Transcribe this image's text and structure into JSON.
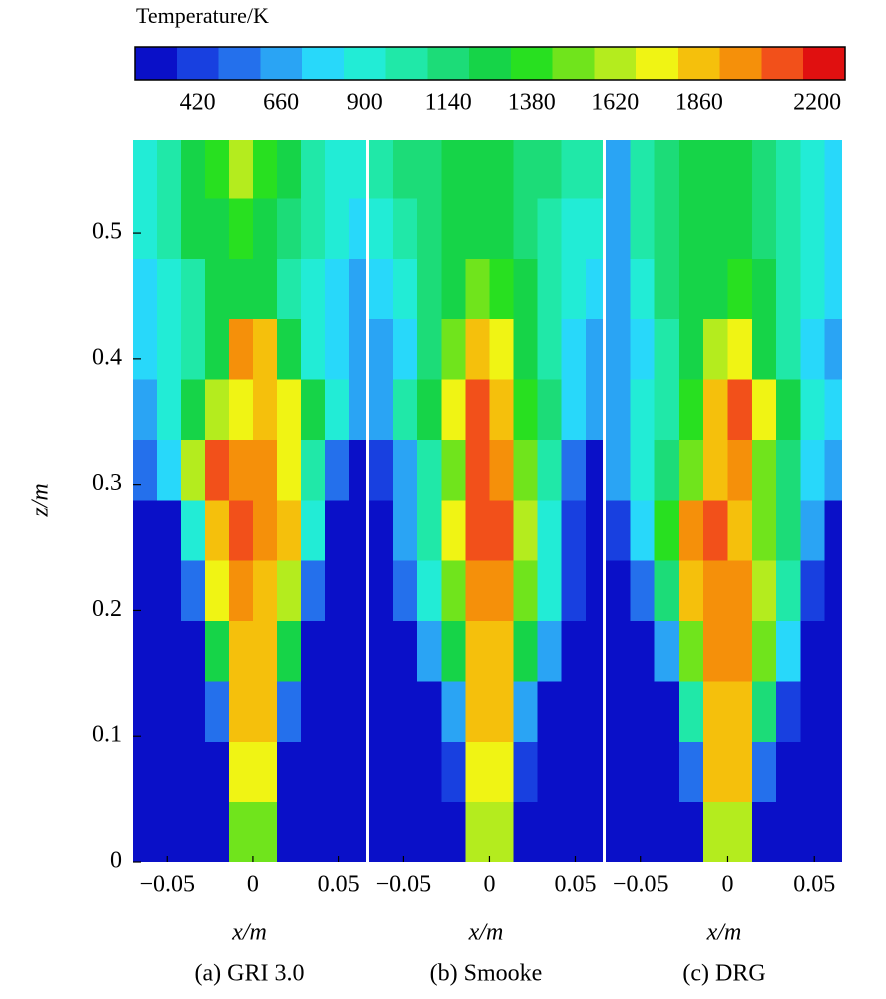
{
  "chart_data": {
    "type": "heatmap",
    "colorbar": {
      "title": "Temperature/K",
      "clim": [
        240,
        2280
      ],
      "colors": [
        "#0a10c8",
        "#1840e0",
        "#2470ec",
        "#2aa4f4",
        "#28d8fa",
        "#22ecd6",
        "#20e8a8",
        "#1cdc78",
        "#16d448",
        "#28e020",
        "#70e41c",
        "#b4ec1e",
        "#f0f414",
        "#f5c00c",
        "#f5900a",
        "#f2501a",
        "#e01010"
      ],
      "ticks": [
        420,
        660,
        900,
        1140,
        1380,
        1620,
        1860,
        2200
      ]
    },
    "ylabel": "z/m",
    "xlim": [
      -0.07,
      0.066
    ],
    "ylim": [
      0,
      0.574
    ],
    "xticks": [
      {
        "value": -0.05,
        "label": "−0.05"
      },
      0,
      0.05
    ],
    "yticks": [
      0,
      0.1,
      0.2,
      0.3,
      0.4,
      0.5
    ],
    "x": [
      -0.063,
      -0.049,
      -0.035,
      -0.021,
      -0.007,
      0.007,
      0.021,
      0.035,
      0.049,
      0.063
    ],
    "y": [
      0.024,
      0.072,
      0.12,
      0.168,
      0.216,
      0.264,
      0.312,
      0.36,
      0.408,
      0.456,
      0.504,
      0.552
    ],
    "panels": [
      {
        "title": "(a) GRI 3.0",
        "xlabel": "x/m",
        "z": [
          [
            300,
            300,
            300,
            300,
            1500,
            1500,
            300,
            300,
            300,
            300
          ],
          [
            300,
            300,
            300,
            300,
            1700,
            1700,
            300,
            300,
            300,
            300
          ],
          [
            300,
            300,
            300,
            500,
            1800,
            1800,
            500,
            300,
            300,
            300
          ],
          [
            300,
            300,
            300,
            1300,
            1900,
            1900,
            1300,
            300,
            300,
            300
          ],
          [
            300,
            300,
            500,
            1700,
            2000,
            1900,
            1600,
            500,
            300,
            300
          ],
          [
            300,
            300,
            900,
            1900,
            2100,
            2000,
            1800,
            900,
            300,
            300
          ],
          [
            500,
            800,
            1600,
            2100,
            2000,
            2000,
            1700,
            1000,
            500,
            300
          ],
          [
            700,
            900,
            1200,
            1600,
            1700,
            1800,
            1700,
            1300,
            900,
            700
          ],
          [
            800,
            900,
            1000,
            1300,
            2000,
            1900,
            1200,
            900,
            800,
            700
          ],
          [
            800,
            900,
            1000,
            1200,
            1300,
            1200,
            1000,
            900,
            800,
            700
          ],
          [
            900,
            1000,
            1200,
            1300,
            1400,
            1300,
            1100,
            1000,
            900,
            800
          ],
          [
            900,
            1000,
            1200,
            1400,
            1600,
            1400,
            1200,
            1000,
            900,
            900
          ]
        ]
      },
      {
        "title": "(b) Smooke",
        "xlabel": "x/m",
        "z": [
          [
            300,
            300,
            300,
            300,
            1600,
            1600,
            300,
            300,
            300,
            300
          ],
          [
            300,
            300,
            300,
            400,
            1700,
            1700,
            400,
            300,
            300,
            300
          ],
          [
            300,
            300,
            300,
            700,
            1800,
            1800,
            700,
            300,
            300,
            300
          ],
          [
            300,
            300,
            600,
            1200,
            1900,
            1900,
            1200,
            600,
            300,
            300
          ],
          [
            300,
            500,
            900,
            1500,
            2000,
            2000,
            1500,
            900,
            400,
            300
          ],
          [
            300,
            600,
            1000,
            1700,
            2100,
            2100,
            1600,
            900,
            400,
            300
          ],
          [
            400,
            700,
            1000,
            1500,
            2100,
            2000,
            1500,
            1000,
            500,
            300
          ],
          [
            700,
            1000,
            1200,
            1700,
            2100,
            1900,
            1400,
            1100,
            800,
            600
          ],
          [
            600,
            800,
            1100,
            1500,
            1900,
            1700,
            1300,
            1000,
            800,
            700
          ],
          [
            800,
            900,
            1100,
            1300,
            1500,
            1400,
            1200,
            1000,
            900,
            800
          ],
          [
            900,
            1000,
            1100,
            1200,
            1300,
            1200,
            1100,
            1000,
            900,
            900
          ],
          [
            1000,
            1100,
            1100,
            1200,
            1200,
            1200,
            1100,
            1100,
            1000,
            1000
          ]
        ]
      },
      {
        "title": "(c) DRG",
        "xlabel": "x/m",
        "z": [
          [
            300,
            300,
            300,
            300,
            1600,
            1600,
            300,
            300,
            300,
            300
          ],
          [
            300,
            300,
            300,
            500,
            1800,
            1800,
            500,
            300,
            300,
            300
          ],
          [
            300,
            300,
            300,
            1000,
            1900,
            1900,
            1100,
            400,
            300,
            300
          ],
          [
            300,
            300,
            700,
            1500,
            2000,
            2000,
            1500,
            800,
            300,
            300
          ],
          [
            300,
            500,
            1100,
            1800,
            2000,
            2000,
            1600,
            1000,
            400,
            300
          ],
          [
            400,
            800,
            1400,
            2000,
            2100,
            1900,
            1500,
            1100,
            600,
            300
          ],
          [
            700,
            900,
            1100,
            1500,
            1900,
            2000,
            1500,
            1100,
            800,
            600
          ],
          [
            700,
            900,
            1000,
            1400,
            1800,
            2100,
            1700,
            1200,
            900,
            800
          ],
          [
            600,
            800,
            1000,
            1200,
            1600,
            1700,
            1300,
            1000,
            800,
            700
          ],
          [
            700,
            900,
            1100,
            1200,
            1300,
            1400,
            1200,
            1000,
            900,
            800
          ],
          [
            700,
            1000,
            1100,
            1200,
            1200,
            1200,
            1100,
            1000,
            900,
            800
          ],
          [
            700,
            1000,
            1100,
            1200,
            1200,
            1200,
            1100,
            1000,
            900,
            800
          ]
        ]
      }
    ]
  }
}
